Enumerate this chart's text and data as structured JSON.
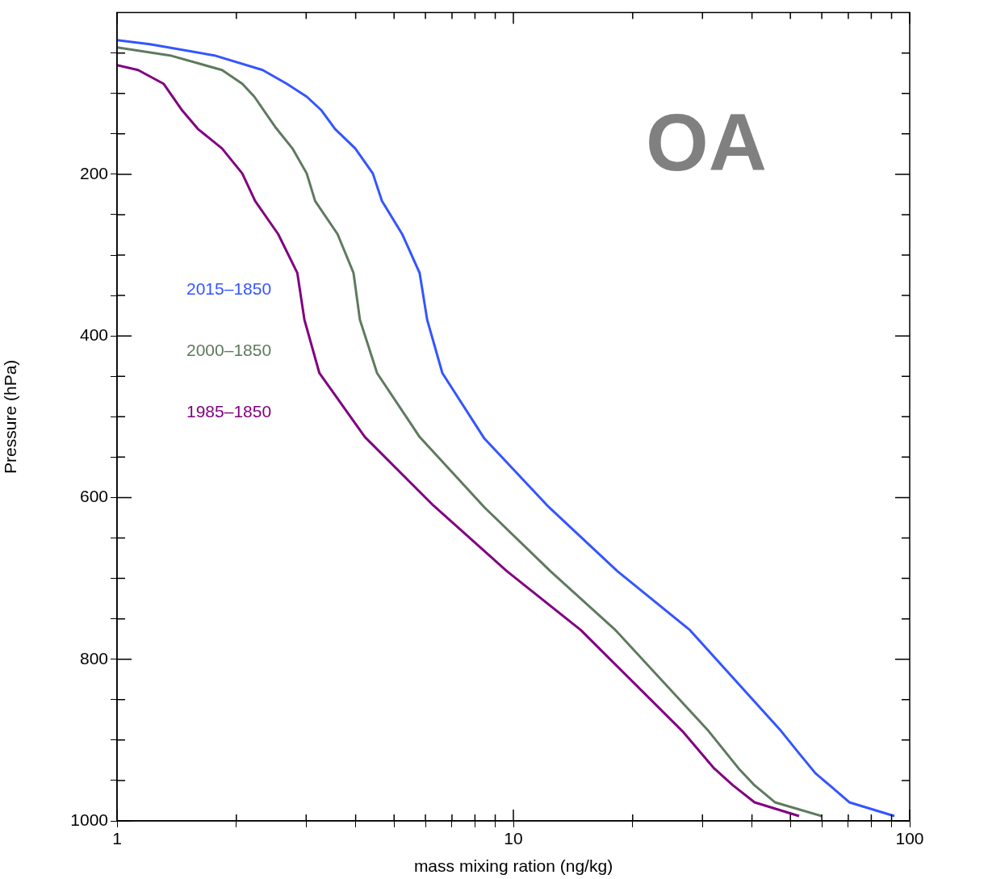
{
  "chart_data": {
    "type": "line",
    "xlabel": "mass mixing ration (ng/kg)",
    "ylabel": "Pressure (hPa)",
    "log": "x",
    "xlim": [
      1,
      100
    ],
    "ylim": [
      1000,
      0
    ],
    "xticks": [
      1,
      {
        "value": 2,
        "label": null
      },
      {
        "value": 3,
        "label": null
      },
      {
        "value": 4,
        "label": null
      },
      {
        "value": 5,
        "label": null
      },
      {
        "value": 6,
        "label": null
      },
      {
        "value": 7,
        "label": null
      },
      {
        "value": 8,
        "label": null
      },
      {
        "value": 9,
        "label": null
      },
      10,
      {
        "value": 20,
        "label": null
      },
      {
        "value": 30,
        "label": null
      },
      {
        "value": 40,
        "label": null
      },
      {
        "value": 50,
        "label": null
      },
      {
        "value": 60,
        "label": null
      },
      {
        "value": 70,
        "label": null
      },
      {
        "value": 80,
        "label": null
      },
      {
        "value": 90,
        "label": null
      },
      100
    ],
    "yticks": [
      {
        "value": 50,
        "label": null
      },
      {
        "value": 100,
        "label": null
      },
      {
        "value": 150,
        "label": null
      },
      200,
      {
        "value": 250,
        "label": null
      },
      {
        "value": 300,
        "label": null
      },
      {
        "value": 350,
        "label": null
      },
      400,
      {
        "value": 450,
        "label": null
      },
      {
        "value": 500,
        "label": null
      },
      {
        "value": 550,
        "label": null
      },
      600,
      {
        "value": 650,
        "label": null
      },
      {
        "value": 700,
        "label": null
      },
      {
        "value": 750,
        "label": null
      },
      800,
      {
        "value": 850,
        "label": null
      },
      {
        "value": 900,
        "label": null
      },
      {
        "value": 950,
        "label": null
      },
      1000
    ],
    "annotations": [
      "OA"
    ],
    "series": [
      {
        "name": "2015–1850",
        "color": "#3355ff",
        "x": [
          1.0,
          1.21,
          1.76,
          2.33,
          2.68,
          3.01,
          3.28,
          3.55,
          3.99,
          4.42,
          4.66,
          5.24,
          5.8,
          6.06,
          6.62,
          8.45,
          12.3,
          18.3,
          27.9,
          47.4,
          52.1,
          57.8,
          63.5,
          70.4,
          91.5
        ],
        "values": [
          34,
          39,
          53,
          71,
          88,
          104,
          121,
          144,
          168,
          199,
          233,
          274,
          322,
          380,
          446,
          527,
          612,
          691,
          764,
          889,
          914,
          941,
          958,
          977,
          994
        ]
      },
      {
        "name": "2000–1850",
        "color": "#5e7a5e",
        "x": [
          1.0,
          1.36,
          1.84,
          2.07,
          2.22,
          2.52,
          2.77,
          3.01,
          3.16,
          3.6,
          3.95,
          4.1,
          4.53,
          5.8,
          8.45,
          12.4,
          18.1,
          31.1,
          37.0,
          40.6,
          45.7,
          60.0
        ],
        "values": [
          43,
          53,
          71,
          88,
          104,
          143,
          168,
          199,
          233,
          274,
          322,
          380,
          446,
          525,
          612,
          691,
          764,
          889,
          935,
          956,
          977,
          994
        ]
      },
      {
        "name": "1985–1850",
        "color": "#800080",
        "x": [
          1.0,
          1.13,
          1.31,
          1.46,
          1.6,
          1.84,
          2.07,
          2.23,
          2.55,
          2.85,
          2.97,
          3.24,
          4.22,
          6.29,
          9.63,
          14.8,
          26.7,
          32.1,
          35.8,
          40.6,
          52.6
        ],
        "values": [
          65,
          71,
          88,
          121,
          144,
          168,
          199,
          233,
          274,
          322,
          380,
          446,
          525,
          610,
          691,
          764,
          889,
          935,
          956,
          977,
          994
        ]
      }
    ]
  }
}
